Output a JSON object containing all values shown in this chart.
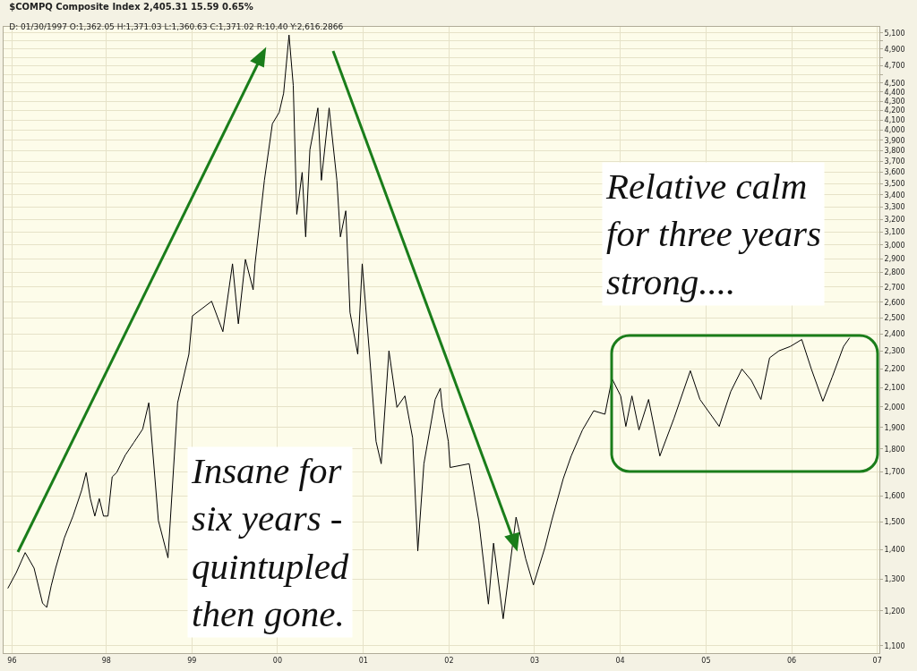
{
  "chart_data": {
    "type": "line",
    "title": "$COMPQ Composite Index 2,405.31 15.59 0.65%",
    "subtitle": "D: 01/30/1997 O:1,362.05 H:1,371.03 L:1,360.63 C:1,371.02 R:10.40 Y:2,616.2866",
    "x": [
      "1996-11-07",
      "1996-12-13",
      "1997-01-20",
      "1997-02-27",
      "1997-04-04",
      "1997-04-22",
      "1997-05-11",
      "1997-05-30",
      "1997-07-06",
      "1997-08-12",
      "1997-09-18",
      "1997-10-07",
      "1997-10-25",
      "1997-11-13",
      "1997-12-02",
      "1997-12-20",
      "1998-01-08",
      "1998-01-26",
      "1998-02-14",
      "1998-03-23",
      "1998-04-29",
      "1998-06-05",
      "1998-07-01",
      "1998-08-11",
      "1998-09-21",
      "1998-11-01",
      "1998-12-19",
      "1999-01-03",
      "1999-03-26",
      "1999-05-13",
      "1999-06-23",
      "1999-07-18",
      "1999-08-17",
      "1999-09-19",
      "1999-09-27",
      "1999-11-06",
      "1999-12-10",
      "2000-01-08",
      "2000-01-27",
      "2000-02-19",
      "2000-03-08",
      "2000-03-23",
      "2000-04-15",
      "2000-04-30",
      "2000-05-18",
      "2000-06-21",
      "2000-07-06",
      "2000-08-08",
      "2000-09-10",
      "2000-09-25",
      "2000-10-18",
      "2000-11-05",
      "2000-12-08",
      "2000-12-27",
      "2001-01-26",
      "2001-02-24",
      "2001-03-18",
      "2001-04-20",
      "2001-05-24",
      "2001-06-27",
      "2001-07-30",
      "2001-08-21",
      "2001-09-16",
      "2001-11-03",
      "2001-11-25",
      "2001-12-03",
      "2001-12-29",
      "2002-01-06",
      "2002-03-28",
      "2002-05-08",
      "2002-06-18",
      "2002-07-10",
      "2002-08-20",
      "2002-10-14",
      "2002-11-24",
      "2002-12-27",
      "2003-02-14",
      "2003-03-15",
      "2003-05-03",
      "2003-06-06",
      "2003-07-24",
      "2003-09-10",
      "2003-10-28",
      "2003-11-27",
      "2004-01-03",
      "2004-01-25",
      "2004-02-20",
      "2004-03-21",
      "2004-05-01",
      "2004-06-18",
      "2004-08-17",
      "2004-10-26",
      "2004-12-06",
      "2005-02-26",
      "2005-04-16",
      "2005-06-03",
      "2005-07-13",
      "2005-08-23",
      "2005-09-29",
      "2005-11-08",
      "2005-12-26",
      "2006-02-13",
      "2006-03-26",
      "2006-05-14",
      "2006-06-23",
      "2006-08-10",
      "2006-09-05"
    ],
    "series": [
      {
        "color": "#000000",
        "values": [
          1270,
          1321,
          1389,
          1336,
          1224,
          1211,
          1278,
          1336,
          1441,
          1522,
          1624,
          1697,
          1590,
          1522,
          1590,
          1522,
          1522,
          1679,
          1697,
          1773,
          1831,
          1892,
          2021,
          1505,
          1371,
          2021,
          2282,
          2512,
          2606,
          2415,
          2862,
          2463,
          2894,
          2682,
          2862,
          3528,
          4064,
          4181,
          4387,
          5075,
          4474,
          3240,
          3598,
          3062,
          3808,
          4228,
          3528,
          4228,
          3528,
          3062,
          3268,
          2534,
          2282,
          2862,
          2302,
          1835,
          1735,
          2302,
          1998,
          2056,
          1851,
          1395,
          1735,
          2038,
          2096,
          1998,
          1835,
          1719,
          1735,
          1505,
          1221,
          1422,
          1177,
          1518,
          1368,
          1281,
          1407,
          1505,
          1671,
          1769,
          1888,
          1981,
          1964,
          2147,
          2056,
          1905,
          2056,
          1888,
          2038,
          1769,
          1943,
          2190,
          2038,
          1905,
          2078,
          2199,
          2138,
          2038,
          2262,
          2302,
          2327,
          2368,
          2199,
          2029,
          2156,
          2327,
          2378
        ]
      }
    ],
    "xlim": [
      "1996-10-20",
      "2007-01-10"
    ],
    "xticks": [
      {
        "value": "1996-11-25",
        "label": "96"
      },
      {
        "value": "1998-01-01",
        "label": "98"
      },
      {
        "value": "1999-01-01",
        "label": "99"
      },
      {
        "value": "2000-01-01",
        "label": "00"
      },
      {
        "value": "2001-01-01",
        "label": "01"
      },
      {
        "value": "2002-01-01",
        "label": "02"
      },
      {
        "value": "2003-01-01",
        "label": "03"
      },
      {
        "value": "2004-01-01",
        "label": "04"
      },
      {
        "value": "2005-01-01",
        "label": "05"
      },
      {
        "value": "2006-01-01",
        "label": "06"
      },
      {
        "value": "2007-01-01",
        "label": "07"
      }
    ],
    "log": true,
    "ylim": [
      1080,
      5180
    ],
    "yticks": [
      {
        "value": 1100,
        "label": "1,100"
      },
      {
        "value": 1200,
        "label": "1,200"
      },
      {
        "value": 1300,
        "label": "1,300"
      },
      {
        "value": 1400,
        "label": "1,400"
      },
      {
        "value": 1500,
        "label": "1,500"
      },
      {
        "value": 1600,
        "label": "1,600"
      },
      {
        "value": 1700,
        "label": "1,700"
      },
      {
        "value": 1800,
        "label": "1,800"
      },
      {
        "value": 1900,
        "label": "1,900"
      },
      {
        "value": 2000,
        "label": "2,000"
      },
      {
        "value": 2100,
        "label": "2,100"
      },
      {
        "value": 2200,
        "label": "2,200"
      },
      {
        "value": 2300,
        "label": "2,300"
      },
      {
        "value": 2400,
        "label": "2,400"
      },
      {
        "value": 2500,
        "label": "2,500"
      },
      {
        "value": 2600,
        "label": "2,600"
      },
      {
        "value": 2700,
        "label": "2,700"
      },
      {
        "value": 2800,
        "label": "2,800"
      },
      {
        "value": 2900,
        "label": "2,900"
      },
      {
        "value": 3000,
        "label": "3,000"
      },
      {
        "value": 3100,
        "label": "3,100"
      },
      {
        "value": 3200,
        "label": "3,200"
      },
      {
        "value": 3300,
        "label": "3,300"
      },
      {
        "value": 3400,
        "label": "3,400"
      },
      {
        "value": 3500,
        "label": "3,500"
      },
      {
        "value": 3600,
        "label": "3,600"
      },
      {
        "value": 3700,
        "label": "3,700"
      },
      {
        "value": 3800,
        "label": "3,800"
      },
      {
        "value": 3900,
        "label": "3,900"
      },
      {
        "value": 4000,
        "label": "4,000"
      },
      {
        "value": 4100,
        "label": "4,100"
      },
      {
        "value": 4200,
        "label": "4,200"
      },
      {
        "value": 4300,
        "label": "4,300"
      },
      {
        "value": 4400,
        "label": "4,400"
      },
      {
        "value": 4500,
        "label": "4,500"
      },
      {
        "value": 4600,
        "label": null
      },
      {
        "value": 4700,
        "label": "4,700"
      },
      {
        "value": 4800,
        "label": null
      },
      {
        "value": 4900,
        "label": "4,900"
      },
      {
        "value": 5000,
        "label": null
      },
      {
        "value": 5100,
        "label": "5,100"
      }
    ],
    "grid": true,
    "marker": "none",
    "line_style": "solid",
    "annotations": [
      "Insane for\nsix years -\nquintupled\nthen gone.",
      "Relative calm\nfor three years\nstrong...."
    ]
  }
}
